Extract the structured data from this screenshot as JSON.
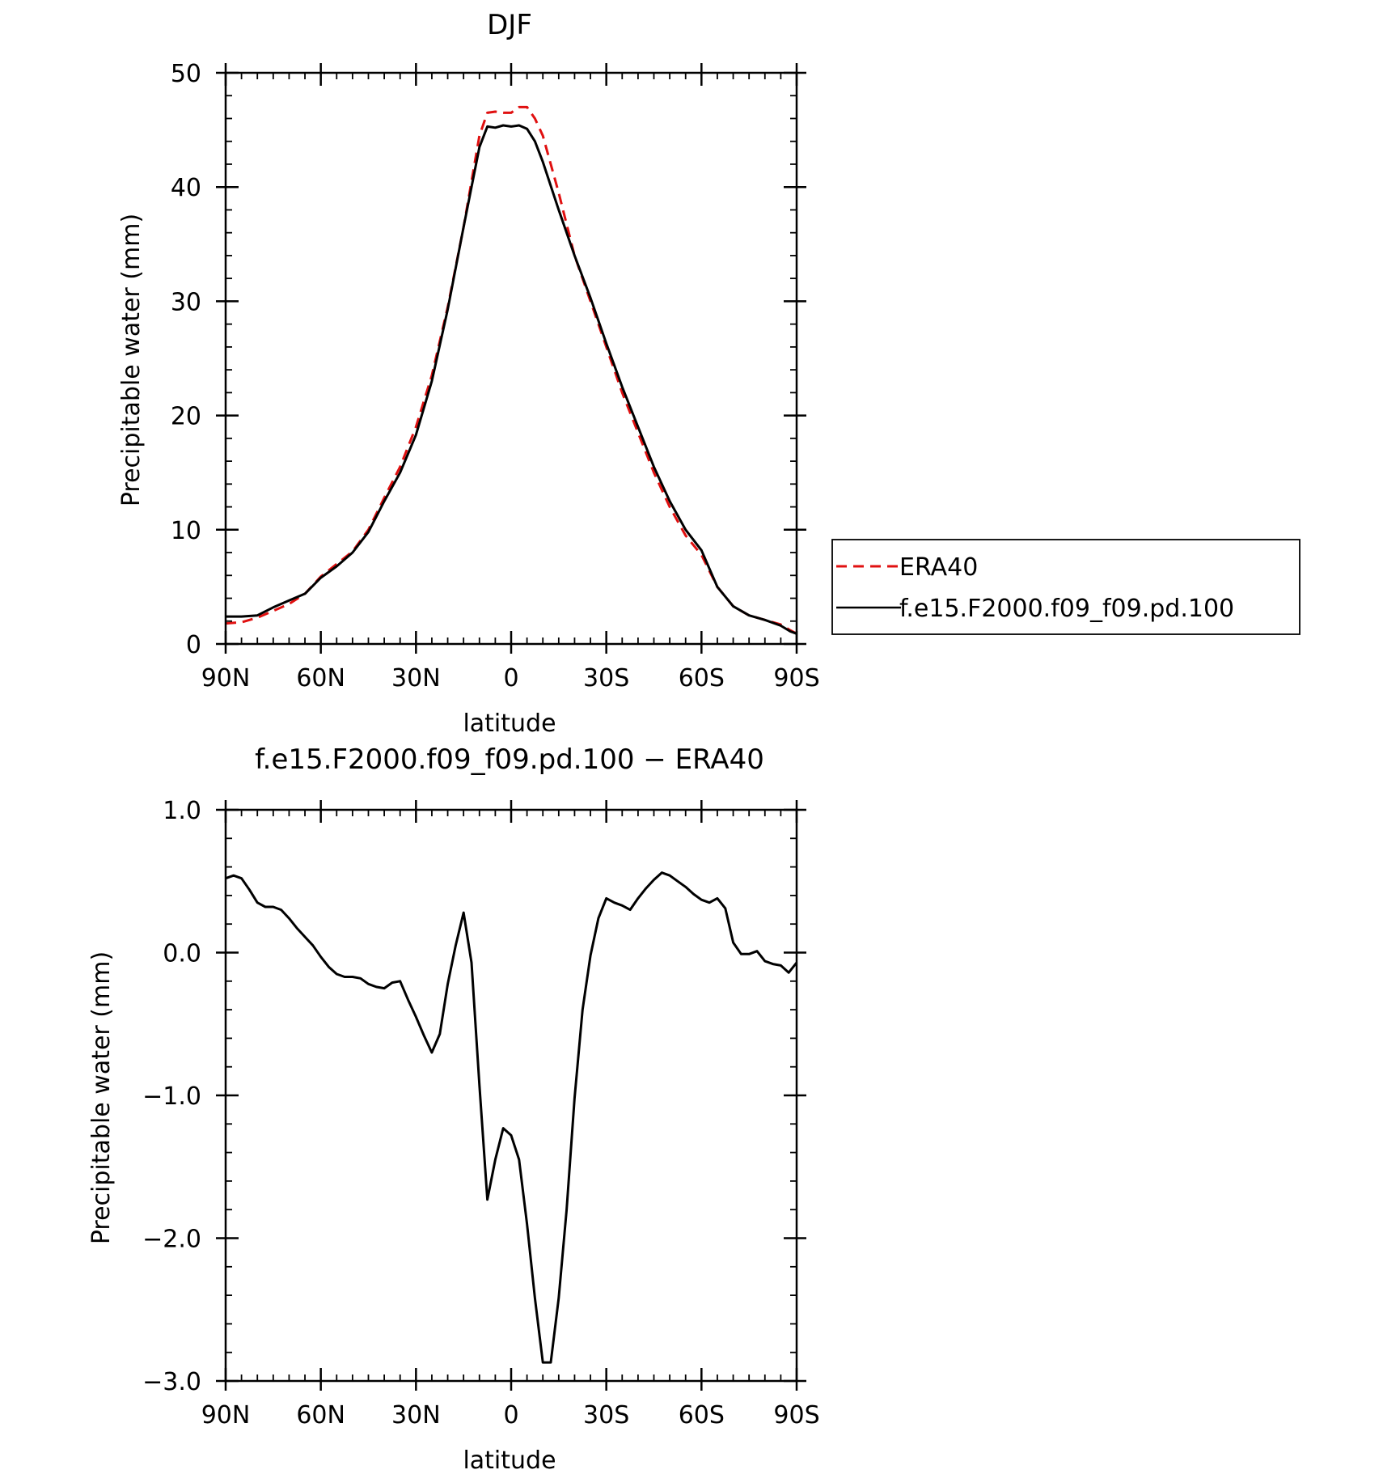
{
  "chart_data": [
    {
      "type": "line",
      "title": "DJF",
      "xlabel": "latitude",
      "ylabel": "Precipitable water (mm)",
      "xticks": [
        "90N",
        "60N",
        "30N",
        "0",
        "30S",
        "60S",
        "90S"
      ],
      "yticks": [
        "0",
        "10",
        "20",
        "30",
        "40",
        "50"
      ],
      "xlim": [
        90,
        -90
      ],
      "ylim": [
        0,
        50
      ],
      "legend": {
        "placement": "right",
        "entries": [
          "ERA40",
          "f.e15.F2000.f09_f09.pd.100"
        ]
      },
      "series": [
        {
          "name": "ERA40",
          "color": "#e01010",
          "dash": "dashed",
          "x": [
            90,
            85,
            80,
            75,
            70,
            65,
            60,
            55,
            50,
            45,
            40,
            35,
            30,
            25,
            20,
            15,
            10,
            7.5,
            5,
            2.5,
            0,
            -2.5,
            -5,
            -7.5,
            -10,
            -15,
            -20,
            -25,
            -30,
            -35,
            -40,
            -45,
            -50,
            -55,
            -60,
            -65,
            -70,
            -75,
            -80,
            -85,
            -88,
            -90
          ],
          "y": [
            1.8,
            1.9,
            2.3,
            2.9,
            3.5,
            4.4,
            5.9,
            7.0,
            8.1,
            10.0,
            12.8,
            15.5,
            19.0,
            23.5,
            29.5,
            36.5,
            44.5,
            46.5,
            46.6,
            46.5,
            46.5,
            47.0,
            47.0,
            46.0,
            44.5,
            39.5,
            34.0,
            30.0,
            26.0,
            22.0,
            18.5,
            15.0,
            12.0,
            9.5,
            7.8,
            5.0,
            3.3,
            2.5,
            2.1,
            1.7,
            1.2,
            0.9
          ]
        },
        {
          "name": "f.e15.F2000.f09_f09.pd.100",
          "color": "#000000",
          "dash": "solid",
          "x": [
            90,
            85,
            80,
            75,
            70,
            65,
            60,
            55,
            50,
            45,
            40,
            35,
            30,
            25,
            20,
            15,
            10,
            7.5,
            5,
            2.5,
            0,
            -2.5,
            -5,
            -7.5,
            -10,
            -15,
            -20,
            -25,
            -30,
            -35,
            -40,
            -45,
            -50,
            -55,
            -60,
            -65,
            -70,
            -75,
            -80,
            -85,
            -88,
            -90
          ],
          "y": [
            2.4,
            2.4,
            2.5,
            3.2,
            3.8,
            4.4,
            5.8,
            6.8,
            8.0,
            9.8,
            12.5,
            15.0,
            18.3,
            23.0,
            29.3,
            36.5,
            43.5,
            45.3,
            45.2,
            45.4,
            45.3,
            45.4,
            45.1,
            44.0,
            42.2,
            38.0,
            34.0,
            30.3,
            26.3,
            22.5,
            19.0,
            15.5,
            12.5,
            10.0,
            8.2,
            5.0,
            3.3,
            2.5,
            2.1,
            1.6,
            1.1,
            0.9
          ]
        }
      ]
    },
    {
      "type": "line",
      "title": "f.e15.F2000.f09_f09.pd.100 − ERA40",
      "xlabel": "latitude",
      "ylabel": "Precipitable water (mm)",
      "xticks": [
        "90N",
        "60N",
        "30N",
        "0",
        "30S",
        "60S",
        "90S"
      ],
      "yticks": [
        "−3.0",
        "−2.0",
        "−1.0",
        "0.0",
        "1.0"
      ],
      "xlim": [
        90,
        -90
      ],
      "ylim": [
        -3,
        1
      ],
      "series": [
        {
          "color": "#000000",
          "dash": "solid",
          "x": [
            90,
            87.5,
            85,
            82.5,
            80,
            77.5,
            75,
            72.5,
            70,
            67.5,
            65,
            62.5,
            60,
            57.5,
            55,
            52.5,
            50,
            47.5,
            45,
            42.5,
            40,
            37.5,
            35,
            32.5,
            30,
            27.5,
            25,
            22.5,
            20,
            17.5,
            15,
            12.5,
            10,
            7.5,
            5,
            2.5,
            0,
            -2.5,
            -5,
            -7.5,
            -10,
            -12.5,
            -15,
            -17.5,
            -20,
            -22.5,
            -25,
            -27.5,
            -30,
            -32.5,
            -35,
            -37.5,
            -40,
            -42.5,
            -45,
            -47.5,
            -50,
            -52.5,
            -55,
            -57.5,
            -60,
            -62.5,
            -65,
            -67.5,
            -70,
            -72.5,
            -75,
            -77.5,
            -80,
            -82.5,
            -85,
            -87.5,
            -90
          ],
          "y": [
            0.52,
            0.54,
            0.52,
            0.44,
            0.35,
            0.32,
            0.32,
            0.3,
            0.24,
            0.17,
            0.11,
            0.05,
            -0.03,
            -0.1,
            -0.15,
            -0.17,
            -0.17,
            -0.18,
            -0.22,
            -0.24,
            -0.25,
            -0.21,
            -0.2,
            -0.33,
            -0.45,
            -0.58,
            -0.7,
            -0.57,
            -0.22,
            0.05,
            0.28,
            -0.07,
            -0.93,
            -1.73,
            -1.45,
            -1.23,
            -1.28,
            -1.45,
            -1.9,
            -2.42,
            -2.87,
            -2.87,
            -2.42,
            -1.8,
            -1.02,
            -0.4,
            -0.02,
            0.24,
            0.38,
            0.35,
            0.33,
            0.3,
            0.38,
            0.45,
            0.51,
            0.56,
            0.54,
            0.5,
            0.46,
            0.41,
            0.37,
            0.35,
            0.38,
            0.31,
            0.07,
            -0.01,
            -0.01,
            0.01,
            -0.06,
            -0.08,
            -0.09,
            -0.14,
            -0.07
          ]
        }
      ]
    }
  ]
}
